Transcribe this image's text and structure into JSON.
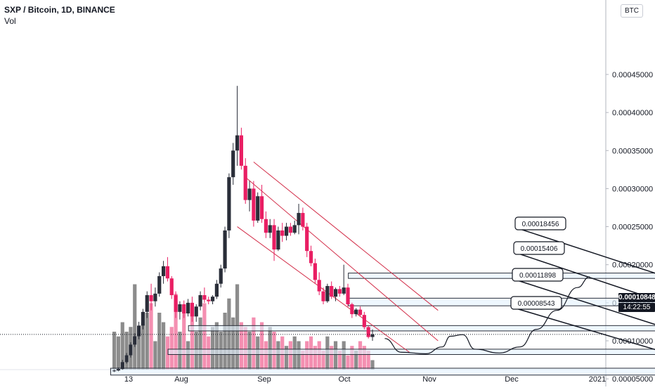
{
  "header": {
    "title": "SXP / Bitcoin, 1D, BINANCE",
    "volume_label": "Vol"
  },
  "currency_button": "BTC",
  "last_price": "0.00010848",
  "countdown": "14:22:55",
  "colors": {
    "up": "#2a2e39",
    "down": "#e91e63",
    "vol_up": "#8c8c8c",
    "vol_down": "#f48fb1",
    "channel": "#d32f4a",
    "zone_fill": "#e3f2fd",
    "zone_stroke": "#2a2e39",
    "path": "#131722"
  },
  "chart_data": {
    "type": "candlestick",
    "title": "SXP / Bitcoin, 1D, BINANCE",
    "y_axis": {
      "ticks": [
        "0.00005000",
        "0.00010000",
        "0.00015000",
        "0.00020000",
        "0.00025000",
        "0.00030000",
        "0.00035000",
        "0.00040000",
        "0.00045000"
      ]
    },
    "x_axis": {
      "ticks": [
        "13",
        "Aug",
        "Sep",
        "Oct",
        "Nov",
        "Dec",
        "2021"
      ]
    },
    "candles": [
      [
        6.0,
        6.2,
        5.9,
        6.1
      ],
      [
        6.1,
        6.5,
        6.0,
        6.3
      ],
      [
        6.3,
        7.5,
        6.2,
        7.2
      ],
      [
        7.2,
        8.4,
        7.0,
        8.1
      ],
      [
        8.1,
        9.8,
        7.8,
        9.5
      ],
      [
        9.5,
        11.0,
        9.2,
        10.6
      ],
      [
        10.6,
        12.5,
        10.2,
        12.0
      ],
      [
        12.0,
        14.2,
        11.5,
        13.8
      ],
      [
        13.8,
        16.5,
        13.0,
        16.0
      ],
      [
        16.0,
        17.5,
        14.0,
        15.2
      ],
      [
        15.2,
        17.0,
        14.5,
        16.2
      ],
      [
        16.2,
        19.0,
        15.8,
        18.5
      ],
      [
        18.5,
        20.5,
        17.5,
        19.8
      ],
      [
        19.8,
        21.0,
        17.8,
        18.2
      ],
      [
        18.2,
        18.5,
        15.5,
        16.0
      ],
      [
        16.0,
        16.5,
        13.0,
        13.8
      ],
      [
        13.8,
        15.2,
        12.8,
        14.8
      ],
      [
        14.8,
        15.3,
        13.0,
        13.6
      ],
      [
        13.6,
        15.5,
        13.2,
        15.0
      ],
      [
        15.0,
        15.8,
        12.5,
        13.2
      ],
      [
        13.2,
        14.8,
        12.5,
        14.5
      ],
      [
        14.5,
        16.5,
        14.0,
        16.0
      ],
      [
        16.0,
        17.0,
        15.0,
        15.4
      ],
      [
        15.4,
        15.8,
        14.8,
        15.2
      ],
      [
        15.2,
        16.0,
        14.8,
        15.8
      ],
      [
        15.8,
        18.0,
        15.5,
        17.5
      ],
      [
        17.5,
        20.0,
        17.0,
        19.5
      ],
      [
        19.5,
        25.0,
        19.0,
        24.5
      ],
      [
        24.5,
        32.0,
        23.5,
        31.5
      ],
      [
        31.5,
        36.0,
        30.5,
        35.0
      ],
      [
        35.0,
        43.5,
        33.0,
        37.0
      ],
      [
        37.0,
        38.0,
        32.5,
        33.0
      ],
      [
        33.0,
        34.0,
        28.0,
        28.5
      ],
      [
        28.5,
        31.0,
        27.0,
        30.0
      ],
      [
        30.0,
        31.0,
        25.0,
        25.8
      ],
      [
        25.8,
        29.5,
        25.5,
        29.0
      ],
      [
        29.0,
        30.5,
        25.5,
        26.0
      ],
      [
        26.0,
        27.0,
        23.5,
        24.2
      ],
      [
        24.2,
        26.0,
        23.5,
        25.2
      ],
      [
        25.2,
        26.0,
        20.5,
        22.0
      ],
      [
        22.0,
        25.0,
        21.8,
        24.5
      ],
      [
        24.5,
        25.5,
        23.0,
        23.8
      ],
      [
        23.8,
        25.5,
        23.2,
        25.0
      ],
      [
        25.0,
        25.5,
        23.8,
        24.2
      ],
      [
        24.2,
        25.8,
        24.0,
        25.2
      ],
      [
        25.2,
        28.0,
        24.0,
        26.8
      ],
      [
        26.8,
        27.5,
        24.5,
        25.0
      ],
      [
        25.0,
        25.5,
        21.0,
        21.8
      ],
      [
        21.8,
        22.5,
        19.8,
        20.2
      ],
      [
        20.2,
        20.8,
        17.5,
        18.0
      ],
      [
        18.0,
        19.0,
        16.0,
        16.5
      ],
      [
        16.5,
        17.0,
        14.8,
        15.2
      ],
      [
        15.2,
        17.5,
        15.0,
        17.2
      ],
      [
        17.2,
        17.8,
        15.5,
        15.8
      ],
      [
        15.8,
        17.0,
        15.2,
        16.8
      ],
      [
        16.8,
        17.2,
        15.8,
        16.2
      ],
      [
        16.2,
        20.0,
        16.0,
        17.0
      ],
      [
        17.0,
        17.5,
        14.5,
        14.8
      ],
      [
        14.8,
        15.0,
        13.0,
        13.5
      ],
      [
        13.5,
        14.3,
        13.2,
        14.1
      ],
      [
        14.1,
        14.5,
        13.2,
        13.4
      ],
      [
        13.4,
        13.8,
        11.5,
        11.8
      ],
      [
        11.8,
        12.0,
        10.3,
        10.5
      ],
      [
        10.5,
        11.5,
        10.0,
        10.85
      ]
    ],
    "volumes": [
      0.4,
      0.35,
      0.5,
      0.4,
      0.45,
      0.9,
      0.4,
      0.5,
      0.6,
      0.7,
      0.3,
      0.6,
      0.5,
      0.35,
      0.45,
      0.8,
      0.4,
      0.6,
      0.3,
      0.65,
      0.4,
      0.55,
      0.7,
      0.35,
      0.45,
      0.5,
      0.4,
      0.6,
      0.75,
      0.55,
      0.9,
      0.5,
      0.45,
      0.4,
      0.55,
      0.35,
      0.5,
      0.3,
      0.45,
      0.4,
      0.3,
      0.35,
      0.25,
      0.3,
      0.35,
      0.3,
      0.2,
      0.3,
      0.35,
      0.25,
      0.3,
      0.2,
      0.35,
      0.25,
      0.3,
      0.2,
      0.3,
      0.15,
      0.25,
      0.2,
      0.3,
      0.25,
      0.2,
      0.1
    ],
    "zones": [
      {
        "top": 18.9,
        "bottom": 18.2,
        "x_start": 58,
        "x_end": 133,
        "label": "0.00018456"
      },
      {
        "top": 15.6,
        "bottom": 14.6,
        "x_start": 58,
        "x_end": 133,
        "label": "0.00015406"
      },
      {
        "top": 12.0,
        "bottom": 11.3,
        "x_start": 19,
        "x_end": 134,
        "label": "0.00011898"
      },
      {
        "top": 8.9,
        "bottom": 8.2,
        "x_start": 14,
        "x_end": 133,
        "label": "0.00008543"
      },
      {
        "top": 6.4,
        "bottom": 5.5,
        "x_start": 0,
        "x_end": 133,
        "label": ""
      }
    ],
    "channel": [
      {
        "from": [
          34,
          33.5
        ],
        "to": [
          79,
          14.0
        ]
      },
      {
        "from": [
          32,
          31.5
        ],
        "to": [
          79,
          10.0
        ]
      },
      {
        "from": [
          30,
          25.0
        ],
        "to": [
          72,
          8.5
        ]
      }
    ],
    "projection_path": [
      [
        66,
        10.3
      ],
      [
        70,
        8.5
      ],
      [
        76,
        8.3
      ],
      [
        80,
        9.2
      ],
      [
        82,
        10.6
      ],
      [
        85,
        10.8
      ],
      [
        88,
        8.9
      ],
      [
        94,
        8.4
      ],
      [
        99,
        9.2
      ],
      [
        103,
        11.5
      ],
      [
        108,
        14.0
      ],
      [
        113,
        17.0
      ],
      [
        116,
        18.4
      ]
    ]
  }
}
